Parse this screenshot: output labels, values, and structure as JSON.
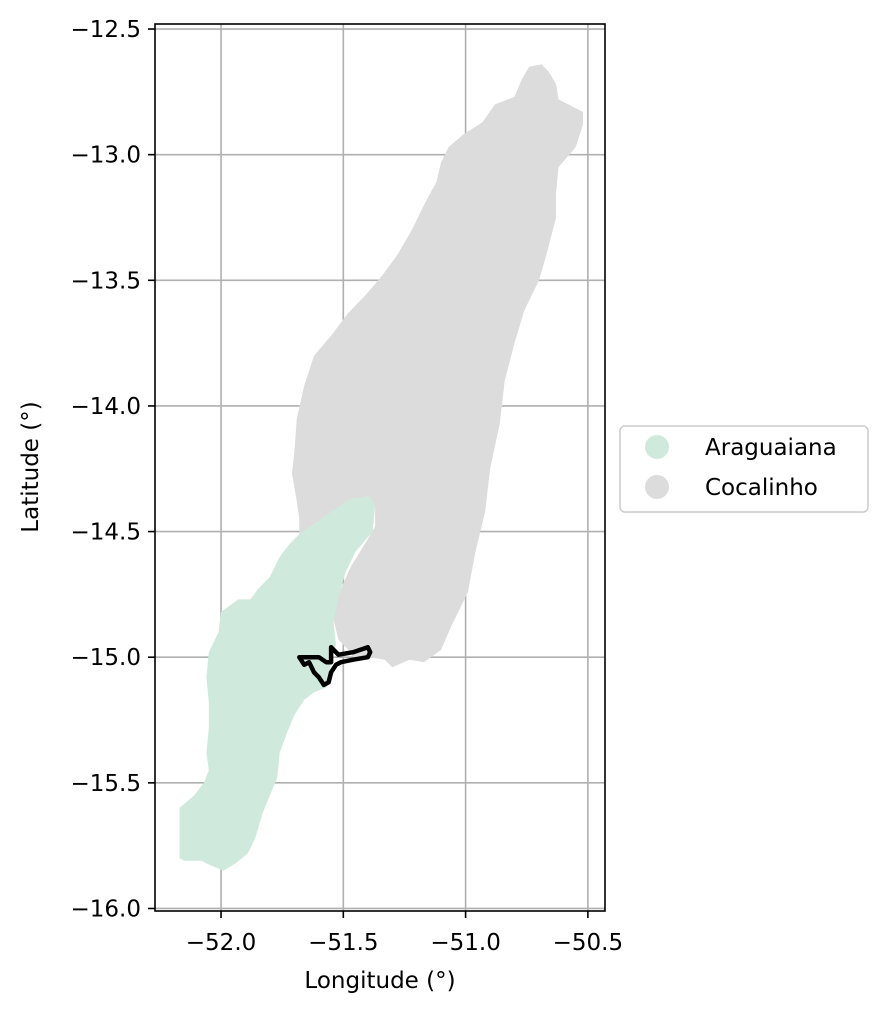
{
  "map": {
    "xlabel": "Longitude (°)",
    "ylabel": "Latitude (°)",
    "xlim": [
      -52.27,
      -50.43
    ],
    "ylim": [
      -16.01,
      -12.48
    ],
    "x_ticks": [
      -52.0,
      -51.5,
      -51.0,
      -50.5
    ],
    "x_tick_labels": [
      "−52.0",
      "−51.5",
      "−51.0",
      "−50.5"
    ],
    "y_ticks": [
      -12.5,
      -13.0,
      -13.5,
      -14.0,
      -14.5,
      -15.0,
      -15.5,
      -16.0
    ],
    "y_tick_labels": [
      "−12.5",
      "−13.0",
      "−13.5",
      "−14.0",
      "−14.5",
      "−15.0",
      "−15.5",
      "−16.0"
    ],
    "grid": true,
    "legend": {
      "placement": "right-center",
      "items": [
        {
          "label": "Araguaiana",
          "color": "#cfeadd"
        },
        {
          "label": "Cocalinho",
          "color": "#dcdcdc"
        }
      ]
    },
    "regions": [
      {
        "name": "Cocalinho",
        "color": "#dcdcdc",
        "coords": [
          [
            -50.69,
            -12.64
          ],
          [
            -50.66,
            -12.67
          ],
          [
            -50.63,
            -12.72
          ],
          [
            -50.62,
            -12.78
          ],
          [
            -50.52,
            -12.83
          ],
          [
            -50.52,
            -12.88
          ],
          [
            -50.55,
            -12.97
          ],
          [
            -50.62,
            -13.05
          ],
          [
            -50.63,
            -13.15
          ],
          [
            -50.63,
            -13.25
          ],
          [
            -50.67,
            -13.4
          ],
          [
            -50.7,
            -13.5
          ],
          [
            -50.76,
            -13.62
          ],
          [
            -50.8,
            -13.75
          ],
          [
            -50.84,
            -13.9
          ],
          [
            -50.86,
            -14.07
          ],
          [
            -50.9,
            -14.25
          ],
          [
            -50.92,
            -14.42
          ],
          [
            -50.96,
            -14.58
          ],
          [
            -50.99,
            -14.74
          ],
          [
            -51.06,
            -14.88
          ],
          [
            -51.1,
            -14.97
          ],
          [
            -51.17,
            -15.02
          ],
          [
            -51.23,
            -15.01
          ],
          [
            -51.3,
            -15.04
          ],
          [
            -51.33,
            -15.01
          ],
          [
            -51.4,
            -15.0
          ],
          [
            -51.46,
            -15.0
          ],
          [
            -51.48,
            -14.97
          ],
          [
            -51.52,
            -14.93
          ],
          [
            -51.54,
            -14.85
          ],
          [
            -51.52,
            -14.75
          ],
          [
            -51.47,
            -14.64
          ],
          [
            -51.4,
            -14.53
          ],
          [
            -51.37,
            -14.48
          ],
          [
            -51.37,
            -14.4
          ],
          [
            -51.4,
            -14.36
          ],
          [
            -51.45,
            -14.38
          ],
          [
            -51.51,
            -14.42
          ],
          [
            -51.57,
            -14.46
          ],
          [
            -51.62,
            -14.49
          ],
          [
            -51.68,
            -14.51
          ],
          [
            -51.68,
            -14.45
          ],
          [
            -51.69,
            -14.38
          ],
          [
            -51.71,
            -14.27
          ],
          [
            -51.7,
            -14.18
          ],
          [
            -51.69,
            -14.05
          ],
          [
            -51.66,
            -13.92
          ],
          [
            -51.62,
            -13.8
          ],
          [
            -51.55,
            -13.72
          ],
          [
            -51.48,
            -13.63
          ],
          [
            -51.41,
            -13.56
          ],
          [
            -51.34,
            -13.48
          ],
          [
            -51.28,
            -13.4
          ],
          [
            -51.22,
            -13.3
          ],
          [
            -51.17,
            -13.2
          ],
          [
            -51.12,
            -13.11
          ],
          [
            -51.1,
            -13.03
          ],
          [
            -51.07,
            -12.97
          ],
          [
            -51.01,
            -12.92
          ],
          [
            -50.93,
            -12.87
          ],
          [
            -50.88,
            -12.8
          ],
          [
            -50.8,
            -12.77
          ],
          [
            -50.77,
            -12.7
          ],
          [
            -50.74,
            -12.65
          ]
        ]
      },
      {
        "name": "Araguaiana",
        "color": "#cfeadd",
        "coords": [
          [
            -51.39,
            -14.36
          ],
          [
            -51.37,
            -14.4
          ],
          [
            -51.38,
            -14.5
          ],
          [
            -51.45,
            -14.58
          ],
          [
            -51.49,
            -14.66
          ],
          [
            -51.52,
            -14.76
          ],
          [
            -51.54,
            -14.86
          ],
          [
            -51.53,
            -14.95
          ],
          [
            -51.55,
            -15.01
          ],
          [
            -51.56,
            -15.08
          ],
          [
            -51.57,
            -15.12
          ],
          [
            -51.62,
            -15.14
          ],
          [
            -51.66,
            -15.17
          ],
          [
            -51.7,
            -15.23
          ],
          [
            -51.73,
            -15.3
          ],
          [
            -51.76,
            -15.38
          ],
          [
            -51.77,
            -15.48
          ],
          [
            -51.8,
            -15.55
          ],
          [
            -51.83,
            -15.62
          ],
          [
            -51.86,
            -15.72
          ],
          [
            -51.89,
            -15.78
          ],
          [
            -51.94,
            -15.82
          ],
          [
            -51.99,
            -15.85
          ],
          [
            -52.04,
            -15.83
          ],
          [
            -52.08,
            -15.81
          ],
          [
            -52.15,
            -15.81
          ],
          [
            -52.17,
            -15.8
          ],
          [
            -52.17,
            -15.7
          ],
          [
            -52.17,
            -15.6
          ],
          [
            -52.11,
            -15.55
          ],
          [
            -52.07,
            -15.5
          ],
          [
            -52.05,
            -15.45
          ],
          [
            -52.06,
            -15.38
          ],
          [
            -52.05,
            -15.28
          ],
          [
            -52.05,
            -15.18
          ],
          [
            -52.06,
            -15.08
          ],
          [
            -52.05,
            -14.98
          ],
          [
            -52.01,
            -14.9
          ],
          [
            -52.0,
            -14.82
          ],
          [
            -51.93,
            -14.77
          ],
          [
            -51.88,
            -14.77
          ],
          [
            -51.85,
            -14.73
          ],
          [
            -51.8,
            -14.68
          ],
          [
            -51.76,
            -14.6
          ],
          [
            -51.72,
            -14.55
          ],
          [
            -51.68,
            -14.51
          ],
          [
            -51.62,
            -14.47
          ],
          [
            -51.55,
            -14.42
          ],
          [
            -51.47,
            -14.37
          ]
        ]
      }
    ],
    "outline": {
      "stroke": "#000000",
      "coords": [
        [
          -51.55,
          -14.96
        ],
        [
          -51.52,
          -14.99
        ],
        [
          -51.46,
          -14.98
        ],
        [
          -51.4,
          -14.96
        ],
        [
          -51.39,
          -14.98
        ],
        [
          -51.4,
          -15.0
        ],
        [
          -51.46,
          -15.01
        ],
        [
          -51.51,
          -15.02
        ],
        [
          -51.53,
          -15.03
        ],
        [
          -51.55,
          -15.06
        ],
        [
          -51.56,
          -15.1
        ],
        [
          -51.58,
          -15.11
        ],
        [
          -51.6,
          -15.08
        ],
        [
          -51.62,
          -15.06
        ],
        [
          -51.64,
          -15.02
        ],
        [
          -51.66,
          -15.03
        ],
        [
          -51.68,
          -15.0
        ],
        [
          -51.6,
          -15.0
        ],
        [
          -51.57,
          -15.02
        ],
        [
          -51.55,
          -15.02
        ]
      ]
    }
  }
}
